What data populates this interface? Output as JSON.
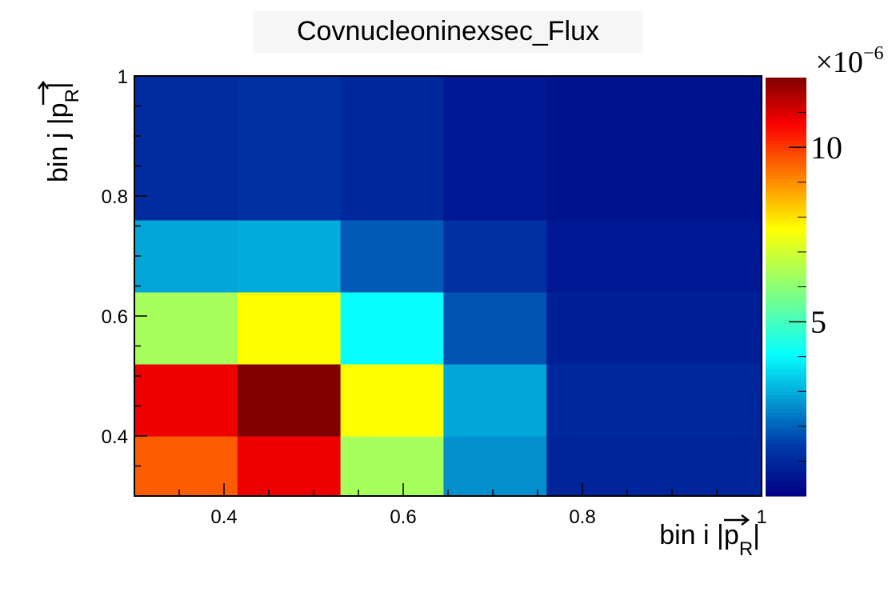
{
  "chart_data": {
    "type": "heatmap",
    "title": "Covnucleoninexsec_Flux",
    "xlabel": "bin i |p_R|",
    "ylabel": "bin j |p_R|",
    "axis_label_base": "bin",
    "axis_label_x_index": "i",
    "axis_label_y_index": "j",
    "axis_label_symbol": "p",
    "axis_label_subscript": "R",
    "x_edges": [
      0.3,
      0.415,
      0.53,
      0.645,
      0.76,
      1.0
    ],
    "y_edges": [
      0.3,
      0.4,
      0.52,
      0.64,
      0.76,
      1.0
    ],
    "xlim": [
      0.3,
      1.0
    ],
    "ylim": [
      0.3,
      1.0
    ],
    "x_ticks": [
      0.4,
      0.6,
      0.8,
      1.0
    ],
    "x_tick_labels": [
      "0.4",
      "0.6",
      "0.8",
      "1"
    ],
    "y_ticks": [
      0.4,
      0.6,
      0.8,
      1.0
    ],
    "y_tick_labels": [
      "0.4",
      "0.6",
      "0.8",
      "1"
    ],
    "z_unit_exponent": "×10",
    "z_unit_power": "−6",
    "z_range": [
      0.0,
      12.0
    ],
    "z_ticks": [
      5,
      10
    ],
    "z_tick_labels": [
      "5",
      "10"
    ],
    "colormap": "jet",
    "values": [
      [
        9.6,
        10.8,
        6.4,
        2.6,
        0.9
      ],
      [
        10.8,
        12.0,
        7.7,
        2.9,
        1.0
      ],
      [
        6.4,
        7.7,
        4.1,
        1.8,
        0.8
      ],
      [
        2.9,
        3.0,
        1.9,
        1.2,
        0.6
      ],
      [
        1.1,
        1.2,
        1.0,
        0.6,
        0.5
      ]
    ]
  }
}
